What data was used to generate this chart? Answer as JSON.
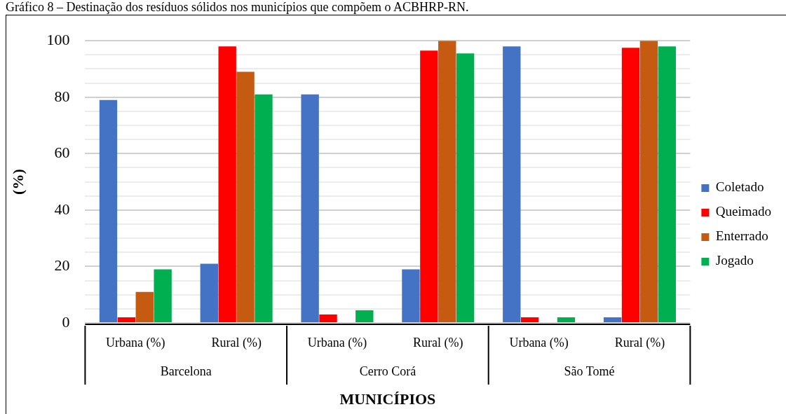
{
  "chart_data": {
    "type": "bar",
    "title": "Gráfico 8 – Destinação dos resíduos sólidos nos municípios que compõem o ACBHRP-RN.",
    "ylabel": "(%)",
    "xlabel": "MUNICÍPIOS",
    "categories": [
      "Urbana (%)",
      "Rural (%)",
      "Urbana (%)",
      "Rural (%)",
      "Urbana (%)",
      "Rural (%)"
    ],
    "series": [
      {
        "name": "Coletado",
        "color": "#4472c4",
        "values": [
          79,
          21,
          81,
          19,
          98,
          2
        ]
      },
      {
        "name": "Queimado",
        "color": "#ff0000",
        "values": [
          2,
          98,
          3,
          96.5,
          2,
          97.5
        ]
      },
      {
        "name": "Enterrado",
        "color": "#c55a11",
        "values": [
          11,
          89,
          0,
          100,
          0,
          100
        ]
      },
      {
        "name": "Jogado",
        "color": "#00b050",
        "values": [
          19,
          81,
          4.5,
          95.5,
          2,
          98
        ]
      }
    ],
    "annotations": [
      "Barcelona",
      "Cerro Corá",
      "São Tomé"
    ],
    "ylim": [
      0,
      100
    ],
    "yticks": [
      0,
      {
        "value": 5,
        "label": null
      },
      {
        "value": 10,
        "label": null
      },
      {
        "value": 15,
        "label": null
      },
      20,
      {
        "value": 25,
        "label": null
      },
      {
        "value": 30,
        "label": null
      },
      {
        "value": 35,
        "label": null
      },
      40,
      {
        "value": 45,
        "label": null
      },
      {
        "value": 50,
        "label": null
      },
      {
        "value": 55,
        "label": null
      },
      60,
      {
        "value": 65,
        "label": null
      },
      {
        "value": 70,
        "label": null
      },
      {
        "value": 75,
        "label": null
      },
      80,
      {
        "value": 85,
        "label": null
      },
      {
        "value": 90,
        "label": null
      },
      {
        "value": 95,
        "label": null
      },
      100
    ],
    "grid": "y",
    "legend": "right"
  }
}
